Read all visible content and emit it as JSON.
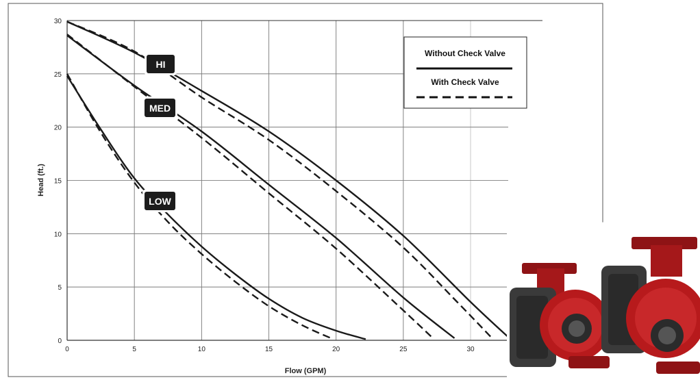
{
  "chart_data": {
    "type": "line",
    "xlabel": "Flow (GPM)",
    "ylabel": "Head (ft.)",
    "xlim": [
      0,
      32.8
    ],
    "ylim": [
      0,
      30
    ],
    "x_ticks": [
      "0",
      "5",
      "10",
      "15",
      "20",
      "25",
      "30"
    ],
    "y_ticks": [
      "0",
      "5",
      "10",
      "15",
      "20",
      "25",
      "30"
    ],
    "grid": true,
    "legend": {
      "placement": "top-right",
      "entries": [
        {
          "label": "Without Check Valve",
          "style": "solid"
        },
        {
          "label": "With Check Valve",
          "style": "dashed"
        }
      ]
    },
    "curve_labels": [
      "HI",
      "MED",
      "LOW"
    ],
    "series": [
      {
        "curve": "HI",
        "style": "solid",
        "x": [
          0,
          5,
          10,
          15,
          20,
          25,
          30,
          32.8
        ],
        "y": [
          29.9,
          27.0,
          23.4,
          19.6,
          15.0,
          9.8,
          3.6,
          0.3
        ]
      },
      {
        "curve": "HI",
        "style": "dashed",
        "x": [
          0,
          5,
          10,
          15,
          20,
          25,
          29,
          31.6
        ],
        "y": [
          29.9,
          27.1,
          22.8,
          18.8,
          14.0,
          8.7,
          3.6,
          0.2
        ]
      },
      {
        "curve": "MED",
        "style": "solid",
        "x": [
          0,
          5,
          10,
          15,
          20,
          25,
          28.8
        ],
        "y": [
          28.6,
          23.9,
          19.6,
          14.6,
          9.6,
          4.0,
          0.2
        ]
      },
      {
        "curve": "MED",
        "style": "dashed",
        "x": [
          0,
          5,
          10,
          15,
          20,
          25,
          27.2
        ],
        "y": [
          28.7,
          23.8,
          19.0,
          13.8,
          8.6,
          2.8,
          0.2
        ]
      },
      {
        "curve": "LOW",
        "style": "solid",
        "x": [
          0,
          2.5,
          5,
          7.5,
          10,
          12.5,
          15,
          17.5,
          20,
          22.2
        ],
        "y": [
          24.8,
          19.8,
          15.2,
          11.8,
          8.8,
          6.2,
          3.9,
          2.1,
          0.9,
          0.1
        ]
      },
      {
        "curve": "LOW",
        "style": "dashed",
        "x": [
          0,
          2.5,
          5,
          7.5,
          10,
          12.5,
          15,
          17.5,
          19.8
        ],
        "y": [
          25.0,
          19.5,
          14.8,
          11.1,
          8.1,
          5.5,
          3.2,
          1.4,
          0.1
        ]
      }
    ]
  },
  "photo": {
    "name": "circulator-pumps-photo",
    "body_color": "#b71a1c",
    "face_color": "#2b2b2b"
  }
}
